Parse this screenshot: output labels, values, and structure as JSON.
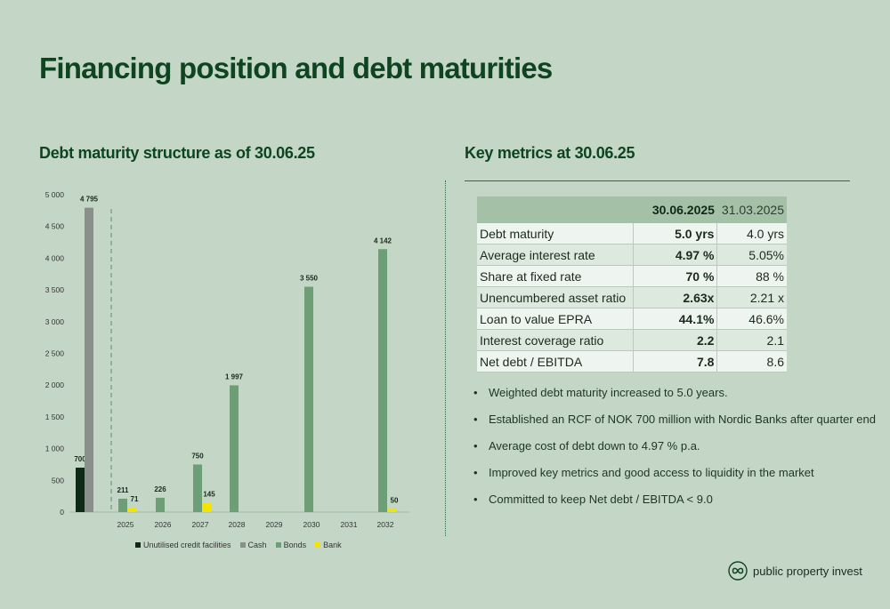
{
  "title": "Financing position and debt maturities",
  "chart_title": "Debt maturity structure as of 30.06.25",
  "metrics_title": "Key metrics at 30.06.25",
  "chart_data": {
    "type": "bar",
    "title": "Debt maturity structure as of 30.06.25",
    "ylim": [
      0,
      5000
    ],
    "yticks": [
      0,
      500,
      1000,
      1500,
      2000,
      2500,
      3000,
      3500,
      4000,
      4500,
      5000
    ],
    "ytick_labels": [
      "0",
      "500",
      "1 000",
      "1 500",
      "2 000",
      "2 500",
      "3 000",
      "3 500",
      "4 000",
      "4 500",
      "5 000"
    ],
    "categories": [
      "",
      "2025",
      "2026",
      "2027",
      "2028",
      "2029",
      "2030",
      "2031",
      "2032"
    ],
    "grid": false,
    "legend_position": "bottom",
    "series": [
      {
        "name": "Unutilised credit facilities",
        "color": "#0e2a16",
        "values": [
          700,
          null,
          null,
          null,
          null,
          null,
          null,
          null,
          null
        ],
        "labels": [
          "700",
          "",
          "",
          "",
          "",
          "",
          "",
          "",
          ""
        ]
      },
      {
        "name": "Cash",
        "color": "#8a8f8b",
        "values": [
          4795,
          null,
          null,
          null,
          null,
          null,
          null,
          null,
          null
        ],
        "labels": [
          "4 795",
          "",
          "",
          "",
          "",
          "",
          "",
          "",
          ""
        ]
      },
      {
        "name": "Bonds",
        "color": "#6e9e75",
        "values": [
          null,
          211,
          226,
          750,
          1997,
          null,
          3550,
          null,
          4142
        ],
        "labels": [
          "",
          "211",
          "226",
          "750",
          "1 997",
          "",
          "3 550",
          "",
          "4 142"
        ]
      },
      {
        "name": "Bank",
        "color": "#f2e600",
        "values": [
          null,
          71,
          null,
          145,
          null,
          null,
          null,
          null,
          50
        ],
        "labels": [
          "",
          "71",
          "",
          "145",
          "",
          "",
          "",
          "",
          "50"
        ]
      }
    ]
  },
  "metrics": {
    "headers": [
      "",
      "30.06.2025",
      "31.03.2025"
    ],
    "rows": [
      {
        "label": "Debt maturity",
        "current": "5.0 yrs",
        "previous": "4.0 yrs"
      },
      {
        "label": "Average interest rate",
        "current": "4.97 %",
        "previous": "5.05%"
      },
      {
        "label": "Share at fixed rate",
        "current": "70 %",
        "previous": "88 %"
      },
      {
        "label": "Unencumbered asset ratio",
        "current": "2.63x",
        "previous": "2.21 x"
      },
      {
        "label": "Loan to value EPRA",
        "current": "44.1%",
        "previous": "46.6%"
      },
      {
        "label": "Interest coverage ratio",
        "current": "2.2",
        "previous": "2.1"
      },
      {
        "label": "Net debt / EBITDA",
        "current": "7.8",
        "previous": "8.6"
      }
    ]
  },
  "bullets": [
    "Weighted debt maturity increased to 5.0 years.",
    "Established an RCF of NOK 700 million with Nordic Banks after quarter end",
    "Average cost of debt down to 4.97 % p.a.",
    "Improved key metrics and good access to liquidity in the market",
    "Committed to keep Net debt / EBITDA < 9.0"
  ],
  "bullet_symbol": "•",
  "logo": {
    "text": "public property invest",
    "icon": "infinity-logo-icon"
  },
  "colors": {
    "background": "#c4d7c6",
    "title": "#0e4520",
    "table_header": "#a4c1a7"
  }
}
